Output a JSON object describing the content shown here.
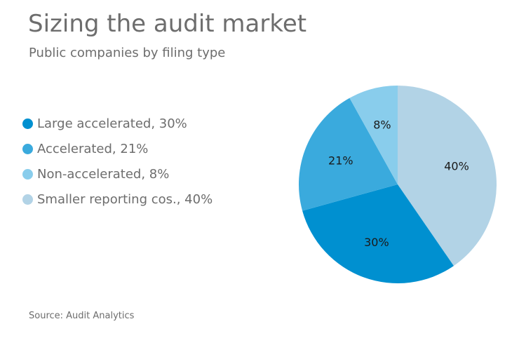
{
  "title": "Sizing the audit market",
  "subtitle": "Public companies by filing type",
  "source": "Source: Audit Analytics",
  "chart_data": {
    "type": "pie",
    "start": "12 o'clock",
    "direction": "clockwise",
    "legend_position": "left",
    "slices": [
      {
        "legend": "Large accelerated, 30%",
        "label": "30%",
        "value": 30,
        "color": "#0090d0"
      },
      {
        "legend": "Accelerated, 21%",
        "label": "21%",
        "value": 21,
        "color": "#3aaadd"
      },
      {
        "legend": "Non-accelerated, 8%",
        "label": "8%",
        "value": 8,
        "color": "#89cdec"
      },
      {
        "legend": "Smaller reporting cos., 40%",
        "label": "40%",
        "value": 40,
        "color": "#b2d3e6"
      }
    ]
  }
}
